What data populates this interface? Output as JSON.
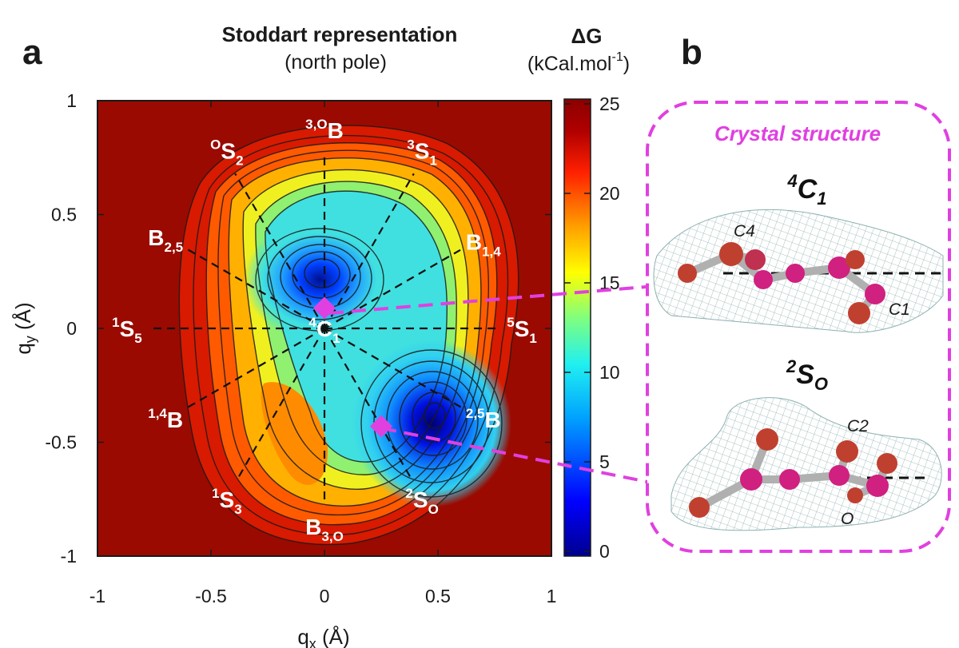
{
  "panel_a_letter": "a",
  "panel_b_letter": "b",
  "colorbar": {
    "title": "ΔG",
    "unit": "(kCal.mol",
    "unit_exp": "-1",
    "unit_close": ")",
    "ticks": [
      "0",
      "5",
      "10",
      "15",
      "20",
      "25"
    ],
    "colors": [
      "#00008f",
      "#0000ff",
      "#00a0ff",
      "#20f0f0",
      "#7fff7f",
      "#ffff00",
      "#ffa000",
      "#ff2000",
      "#b00000",
      "#8b0000"
    ]
  },
  "chart_data": {
    "type": "heatmap",
    "title": "Stoddart representation",
    "subtitle": "(north pole)",
    "xlabel": "q",
    "xlabel_sub": "x",
    "xlabel_unit": " (Å)",
    "ylabel": "q",
    "ylabel_sub": "y",
    "ylabel_unit": " (Å)",
    "xlim": [
      -1,
      1
    ],
    "ylim": [
      -1,
      1
    ],
    "x_ticks": [
      "-1",
      "-0.5",
      "0",
      "0.5",
      "1"
    ],
    "y_ticks": [
      "1",
      "0.5",
      "0",
      "-0.5",
      "-1"
    ],
    "zlim": [
      0,
      25
    ],
    "z_label": "ΔG (kCal.mol-1)",
    "minima": [
      {
        "x": 0.0,
        "y": 0.2,
        "value": 1.5
      },
      {
        "x": 0.48,
        "y": -0.42,
        "value": 0.5
      }
    ],
    "markers": [
      {
        "x": 0.0,
        "y": 0.09,
        "shape": "diamond",
        "color": "#e040e0"
      },
      {
        "x": 0.25,
        "y": -0.43,
        "shape": "diamond",
        "color": "#e040e0"
      }
    ],
    "conformers": [
      {
        "sup": "3,O",
        "main": "B",
        "sub": "",
        "x": 0.0,
        "y": 0.87,
        "dir_deg": 90
      },
      {
        "sup": "3",
        "main": "S",
        "sub": "1",
        "x": 0.43,
        "y": 0.78,
        "dir_deg": 60
      },
      {
        "sup": "",
        "main": "B",
        "sub": "1,4",
        "x": 0.7,
        "y": 0.38,
        "dir_deg": 30
      },
      {
        "sup": "5",
        "main": "S",
        "sub": "1",
        "x": 0.87,
        "y": 0.0,
        "dir_deg": 0
      },
      {
        "sup": "2,5",
        "main": "B",
        "sub": "",
        "x": 0.7,
        "y": -0.4,
        "dir_deg": -30
      },
      {
        "sup": "2",
        "main": "S",
        "sub": "O",
        "x": 0.43,
        "y": -0.75,
        "dir_deg": -60
      },
      {
        "sup": "",
        "main": "B",
        "sub": "3,O",
        "x": 0.0,
        "y": -0.87,
        "dir_deg": -90
      },
      {
        "sup": "1",
        "main": "S",
        "sub": "3",
        "x": -0.43,
        "y": -0.75,
        "dir_deg": -120
      },
      {
        "sup": "1,4",
        "main": "B",
        "sub": "",
        "x": -0.7,
        "y": -0.4,
        "dir_deg": -150
      },
      {
        "sup": "1",
        "main": "S",
        "sub": "5",
        "x": -0.87,
        "y": 0.0,
        "dir_deg": 180
      },
      {
        "sup": "",
        "main": "B",
        "sub": "2,5",
        "x": -0.7,
        "y": 0.4,
        "dir_deg": 150
      },
      {
        "sup": "O",
        "main": "S",
        "sub": "2",
        "x": -0.43,
        "y": 0.78,
        "dir_deg": 120
      },
      {
        "sup": "4",
        "main": "C",
        "sub": "1",
        "x": 0.0,
        "y": 0.0,
        "dir_deg": null
      }
    ]
  },
  "crystal": {
    "title": "Crystal structure",
    "border_color": "#e040e0",
    "top": {
      "sup": "4",
      "main": "C",
      "sub": "1",
      "atoms": [
        "C4",
        "C1"
      ]
    },
    "bottom": {
      "sup": "2",
      "main": "S",
      "sub": "O",
      "atoms": [
        "C2",
        "O"
      ]
    }
  }
}
